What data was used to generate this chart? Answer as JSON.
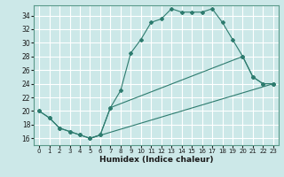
{
  "xlabel": "Humidex (Indice chaleur)",
  "ylabel": "",
  "bg_color": "#cce8e8",
  "line_color": "#2d7b6e",
  "grid_color": "#ffffff",
  "xlim": [
    -0.5,
    23.5
  ],
  "ylim": [
    15.0,
    35.5
  ],
  "xticks": [
    0,
    1,
    2,
    3,
    4,
    5,
    6,
    7,
    8,
    9,
    10,
    11,
    12,
    13,
    14,
    15,
    16,
    17,
    18,
    19,
    20,
    21,
    22,
    23
  ],
  "yticks": [
    16,
    18,
    20,
    22,
    24,
    26,
    28,
    30,
    32,
    34
  ],
  "series1": [
    [
      0,
      20
    ],
    [
      1,
      19
    ],
    [
      2,
      17.5
    ],
    [
      3,
      17
    ],
    [
      4,
      16.5
    ],
    [
      5,
      16
    ],
    [
      6,
      16.5
    ],
    [
      7,
      20.5
    ],
    [
      8,
      23
    ],
    [
      9,
      28.5
    ],
    [
      10,
      30.5
    ],
    [
      11,
      33
    ],
    [
      12,
      33.5
    ],
    [
      13,
      35
    ],
    [
      14,
      34.5
    ],
    [
      15,
      34.5
    ],
    [
      16,
      34.5
    ],
    [
      17,
      35
    ],
    [
      18,
      33
    ],
    [
      19,
      30.5
    ],
    [
      20,
      28
    ],
    [
      21,
      25
    ],
    [
      22,
      24
    ],
    [
      23,
      24
    ]
  ],
  "series2": [
    [
      0,
      20
    ],
    [
      1,
      19
    ],
    [
      2,
      17.5
    ],
    [
      3,
      17
    ],
    [
      4,
      16.5
    ],
    [
      5,
      16
    ],
    [
      6,
      16.5
    ],
    [
      7,
      20.5
    ],
    [
      20,
      28
    ],
    [
      21,
      25
    ],
    [
      22,
      24
    ],
    [
      23,
      24
    ]
  ],
  "series3": [
    [
      5,
      16
    ],
    [
      23,
      24
    ]
  ]
}
